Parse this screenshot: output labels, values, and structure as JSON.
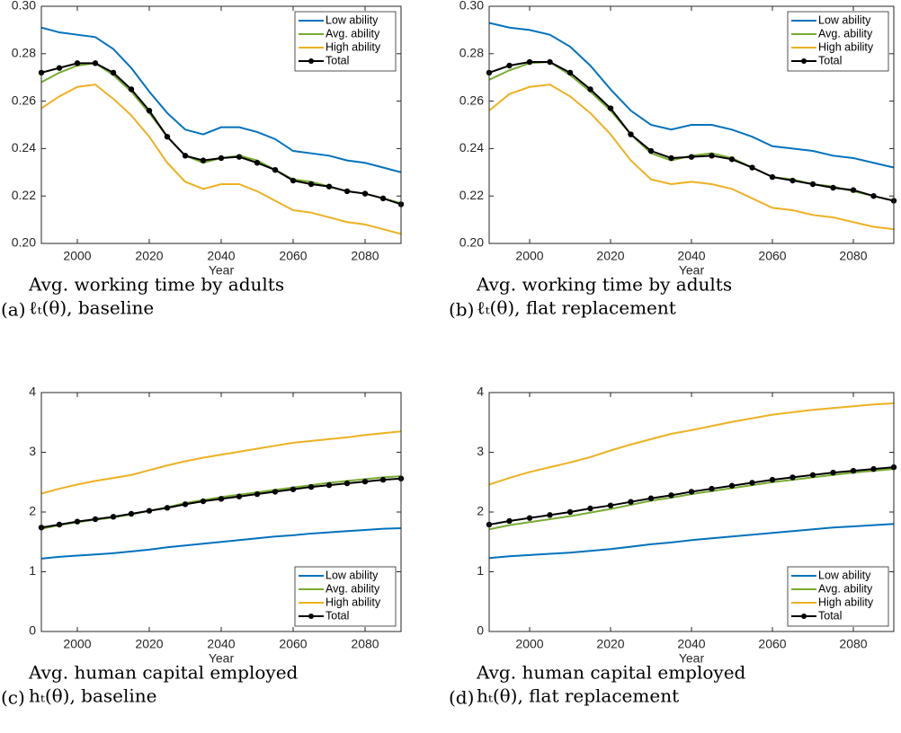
{
  "chart_data": [
    {
      "type": "line",
      "caption_label": "(a)",
      "caption": [
        "Avg.   working time by adults",
        "ℓₜ(θ), baseline"
      ],
      "x_label": "Year",
      "x": [
        1990,
        1995,
        2000,
        2005,
        2010,
        2015,
        2020,
        2025,
        2030,
        2035,
        2040,
        2045,
        2050,
        2055,
        2060,
        2065,
        2070,
        2075,
        2080,
        2085,
        2090
      ],
      "xlim": [
        1990,
        2090
      ],
      "xticks": [
        2000,
        2020,
        2040,
        2060,
        2080
      ],
      "ylim": [
        0.2,
        0.3
      ],
      "yticks": [
        {
          "value": 0.2,
          "label": "0.20"
        },
        0.22,
        0.24,
        0.26,
        0.28,
        {
          "value": 0.3,
          "label": "0.30"
        }
      ],
      "legend": "top-right",
      "series": [
        {
          "name": "Low ability",
          "color": "#0072bd",
          "values": [
            0.291,
            0.289,
            0.288,
            0.287,
            0.282,
            0.274,
            0.264,
            0.255,
            0.248,
            0.246,
            0.249,
            0.249,
            0.247,
            0.244,
            0.239,
            0.238,
            0.237,
            0.235,
            0.234,
            0.232,
            0.23
          ]
        },
        {
          "name": "Avg. ability",
          "color": "#77ac30",
          "values": [
            0.268,
            0.272,
            0.275,
            0.276,
            0.271,
            0.264,
            0.255,
            0.245,
            0.237,
            0.234,
            0.236,
            0.237,
            0.235,
            0.231,
            0.227,
            0.226,
            0.224,
            0.222,
            0.221,
            0.219,
            0.217
          ]
        },
        {
          "name": "High ability",
          "color": "#edb120",
          "values": [
            0.257,
            0.262,
            0.266,
            0.267,
            0.261,
            0.254,
            0.245,
            0.234,
            0.226,
            0.223,
            0.225,
            0.225,
            0.222,
            0.218,
            0.214,
            0.213,
            0.211,
            0.209,
            0.208,
            0.206,
            0.204
          ]
        },
        {
          "name": "Total",
          "color": "#000000",
          "marker": true,
          "values": [
            0.272,
            0.274,
            0.276,
            0.276,
            0.272,
            0.265,
            0.256,
            0.245,
            0.237,
            0.235,
            0.236,
            0.2365,
            0.234,
            0.231,
            0.2265,
            0.225,
            0.224,
            0.222,
            0.221,
            0.219,
            0.2165
          ]
        }
      ]
    },
    {
      "type": "line",
      "caption_label": "(b)",
      "caption": [
        "Avg.   working time by adults",
        "ℓₜ(θ), flat replacement"
      ],
      "x_label": "Year",
      "x": [
        1990,
        1995,
        2000,
        2005,
        2010,
        2015,
        2020,
        2025,
        2030,
        2035,
        2040,
        2045,
        2050,
        2055,
        2060,
        2065,
        2070,
        2075,
        2080,
        2085,
        2090
      ],
      "xlim": [
        1990,
        2090
      ],
      "xticks": [
        2000,
        2020,
        2040,
        2060,
        2080
      ],
      "ylim": [
        0.2,
        0.3
      ],
      "yticks": [
        {
          "value": 0.2,
          "label": "0.20"
        },
        0.22,
        0.24,
        0.26,
        0.28,
        {
          "value": 0.3,
          "label": "0.30"
        }
      ],
      "legend": "top-right",
      "series": [
        {
          "name": "Low ability",
          "color": "#0072bd",
          "values": [
            0.293,
            0.291,
            0.29,
            0.288,
            0.283,
            0.275,
            0.265,
            0.256,
            0.25,
            0.248,
            0.25,
            0.25,
            0.248,
            0.245,
            0.241,
            0.24,
            0.239,
            0.237,
            0.236,
            0.234,
            0.232
          ]
        },
        {
          "name": "Avg. ability",
          "color": "#77ac30",
          "values": [
            0.269,
            0.273,
            0.276,
            0.2765,
            0.271,
            0.264,
            0.256,
            0.246,
            0.238,
            0.235,
            0.237,
            0.238,
            0.236,
            0.232,
            0.228,
            0.227,
            0.225,
            0.224,
            0.222,
            0.22,
            0.218
          ]
        },
        {
          "name": "High ability",
          "color": "#edb120",
          "values": [
            0.256,
            0.263,
            0.266,
            0.267,
            0.262,
            0.255,
            0.246,
            0.235,
            0.227,
            0.225,
            0.226,
            0.225,
            0.223,
            0.219,
            0.215,
            0.214,
            0.212,
            0.211,
            0.209,
            0.207,
            0.206
          ]
        },
        {
          "name": "Total",
          "color": "#000000",
          "marker": true,
          "values": [
            0.272,
            0.275,
            0.2765,
            0.2765,
            0.272,
            0.265,
            0.257,
            0.246,
            0.239,
            0.236,
            0.2365,
            0.237,
            0.2355,
            0.232,
            0.228,
            0.2265,
            0.225,
            0.2235,
            0.2225,
            0.22,
            0.218
          ]
        }
      ]
    },
    {
      "type": "line",
      "caption_label": "(c)",
      "caption": [
        "Avg.   human capital employed",
        "hₜ(θ), baseline"
      ],
      "x_label": "Year",
      "x": [
        1990,
        1995,
        2000,
        2005,
        2010,
        2015,
        2020,
        2025,
        2030,
        2035,
        2040,
        2045,
        2050,
        2055,
        2060,
        2065,
        2070,
        2075,
        2080,
        2085,
        2090
      ],
      "xlim": [
        1990,
        2090
      ],
      "xticks": [
        2000,
        2020,
        2040,
        2060,
        2080
      ],
      "ylim": [
        0,
        4
      ],
      "yticks": [
        0,
        1,
        2,
        3,
        4
      ],
      "legend": "bottom-right",
      "series": [
        {
          "name": "Low ability",
          "color": "#0072bd",
          "values": [
            1.22,
            1.25,
            1.27,
            1.29,
            1.31,
            1.34,
            1.37,
            1.41,
            1.44,
            1.47,
            1.5,
            1.53,
            1.56,
            1.59,
            1.61,
            1.64,
            1.66,
            1.68,
            1.7,
            1.72,
            1.73
          ]
        },
        {
          "name": "Avg. ability",
          "color": "#77ac30",
          "values": [
            1.72,
            1.78,
            1.83,
            1.87,
            1.91,
            1.96,
            2.02,
            2.08,
            2.15,
            2.2,
            2.25,
            2.29,
            2.33,
            2.37,
            2.41,
            2.45,
            2.49,
            2.52,
            2.55,
            2.58,
            2.6
          ]
        },
        {
          "name": "High ability",
          "color": "#edb120",
          "values": [
            2.31,
            2.39,
            2.46,
            2.52,
            2.57,
            2.62,
            2.7,
            2.78,
            2.85,
            2.91,
            2.96,
            3.01,
            3.06,
            3.11,
            3.16,
            3.19,
            3.22,
            3.25,
            3.29,
            3.32,
            3.35
          ]
        },
        {
          "name": "Total",
          "color": "#000000",
          "marker": true,
          "values": [
            1.74,
            1.79,
            1.84,
            1.88,
            1.92,
            1.97,
            2.02,
            2.07,
            2.13,
            2.18,
            2.22,
            2.26,
            2.3,
            2.34,
            2.38,
            2.42,
            2.45,
            2.48,
            2.51,
            2.54,
            2.56
          ]
        }
      ]
    },
    {
      "type": "line",
      "caption_label": "(d)",
      "caption": [
        "Avg.   human capital employed",
        "hₜ(θ), flat replacement"
      ],
      "x_label": "Year",
      "x": [
        1990,
        1995,
        2000,
        2005,
        2010,
        2015,
        2020,
        2025,
        2030,
        2035,
        2040,
        2045,
        2050,
        2055,
        2060,
        2065,
        2070,
        2075,
        2080,
        2085,
        2090
      ],
      "xlim": [
        1990,
        2090
      ],
      "xticks": [
        2000,
        2020,
        2040,
        2060,
        2080
      ],
      "ylim": [
        0,
        4
      ],
      "yticks": [
        0,
        1,
        2,
        3,
        4
      ],
      "legend": "bottom-right",
      "series": [
        {
          "name": "Low ability",
          "color": "#0072bd",
          "values": [
            1.23,
            1.26,
            1.28,
            1.3,
            1.32,
            1.35,
            1.38,
            1.42,
            1.46,
            1.49,
            1.53,
            1.56,
            1.59,
            1.62,
            1.65,
            1.68,
            1.71,
            1.74,
            1.76,
            1.78,
            1.8
          ]
        },
        {
          "name": "Avg. ability",
          "color": "#77ac30",
          "values": [
            1.71,
            1.78,
            1.83,
            1.88,
            1.93,
            1.99,
            2.05,
            2.12,
            2.19,
            2.24,
            2.3,
            2.35,
            2.4,
            2.45,
            2.5,
            2.54,
            2.58,
            2.62,
            2.66,
            2.69,
            2.72
          ]
        },
        {
          "name": "High ability",
          "color": "#edb120",
          "values": [
            2.46,
            2.57,
            2.67,
            2.75,
            2.83,
            2.92,
            3.03,
            3.13,
            3.22,
            3.31,
            3.37,
            3.44,
            3.51,
            3.57,
            3.63,
            3.67,
            3.71,
            3.74,
            3.77,
            3.8,
            3.82
          ]
        },
        {
          "name": "Total",
          "color": "#000000",
          "marker": true,
          "values": [
            1.79,
            1.85,
            1.9,
            1.95,
            2.0,
            2.06,
            2.11,
            2.17,
            2.23,
            2.28,
            2.34,
            2.39,
            2.44,
            2.49,
            2.54,
            2.58,
            2.62,
            2.66,
            2.69,
            2.72,
            2.75
          ]
        }
      ]
    }
  ]
}
